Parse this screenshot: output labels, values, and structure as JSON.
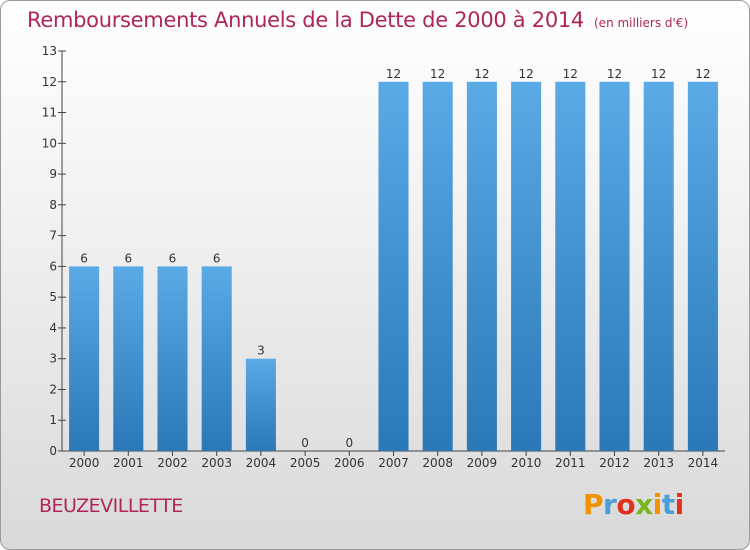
{
  "chart_data": {
    "type": "bar",
    "title": "Remboursements Annuels de la Dette de 2000 à 2014",
    "subtitle": "(en milliers d'€)",
    "categories": [
      "2000",
      "2001",
      "2002",
      "2003",
      "2004",
      "2005",
      "2006",
      "2007",
      "2008",
      "2009",
      "2010",
      "2011",
      "2012",
      "2013",
      "2014"
    ],
    "values": [
      6,
      6,
      6,
      6,
      3,
      0,
      0,
      12,
      12,
      12,
      12,
      12,
      12,
      12,
      12
    ],
    "ylim": [
      0,
      13
    ],
    "yticks": [
      0,
      1,
      2,
      3,
      4,
      5,
      6,
      7,
      8,
      9,
      10,
      11,
      12,
      13
    ],
    "xlabel": "",
    "ylabel": "",
    "grid": false,
    "bar_color_top": "#5aaae6",
    "bar_color_bottom": "#2a78b8"
  },
  "footer": {
    "commune": "BEUZEVILLETTE",
    "brand_letters": [
      "P",
      "r",
      "o",
      "x",
      "i",
      "t",
      "i"
    ],
    "brand_colors": [
      "#f39200",
      "#4a9fd8",
      "#e0301e",
      "#7ab51d",
      "#f39200",
      "#4a9fd8",
      "#e0301e"
    ]
  },
  "colors": {
    "title": "#b0255a",
    "axis": "#444444"
  }
}
